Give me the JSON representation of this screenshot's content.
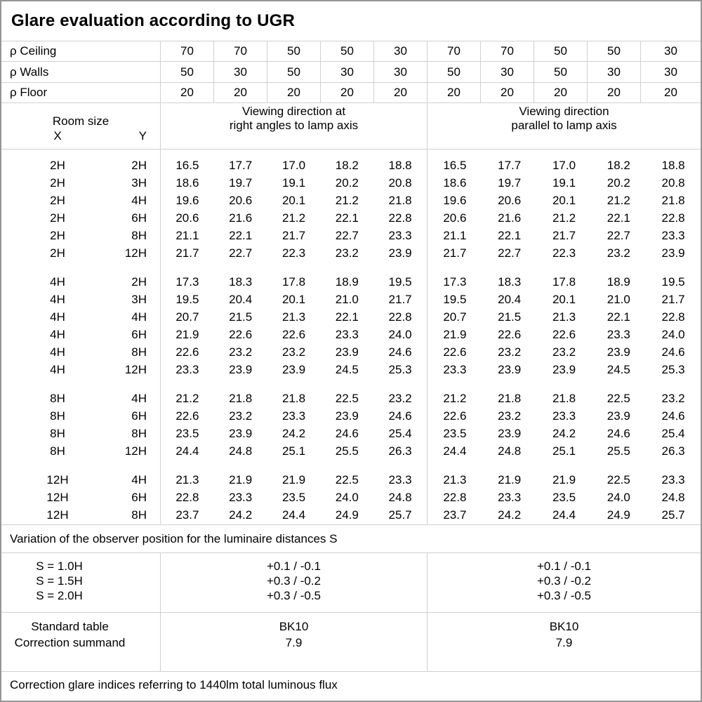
{
  "title": "Glare evaluation according to UGR",
  "reflectance": {
    "rows": [
      {
        "label": "ρ Ceiling",
        "values": [
          "70",
          "70",
          "50",
          "50",
          "30",
          "70",
          "70",
          "50",
          "50",
          "30"
        ]
      },
      {
        "label": "ρ Walls",
        "values": [
          "50",
          "30",
          "50",
          "30",
          "30",
          "50",
          "30",
          "50",
          "30",
          "30"
        ]
      },
      {
        "label": "ρ Floor",
        "values": [
          "20",
          "20",
          "20",
          "20",
          "20",
          "20",
          "20",
          "20",
          "20",
          "20"
        ]
      }
    ]
  },
  "header": {
    "room_size": "Room size",
    "x_label": "X",
    "y_label": "Y",
    "group_right_angles_line1": "Viewing direction at",
    "group_right_angles_line2": "right angles to lamp axis",
    "group_parallel_line1": "Viewing direction",
    "group_parallel_line2": "parallel to lamp axis"
  },
  "ugr_table": {
    "blocks": [
      {
        "rows": [
          {
            "x": "2H",
            "y": "2H",
            "right_angles": [
              "16.5",
              "17.7",
              "17.0",
              "18.2",
              "18.8"
            ],
            "parallel": [
              "16.5",
              "17.7",
              "17.0",
              "18.2",
              "18.8"
            ]
          },
          {
            "x": "2H",
            "y": "3H",
            "right_angles": [
              "18.6",
              "19.7",
              "19.1",
              "20.2",
              "20.8"
            ],
            "parallel": [
              "18.6",
              "19.7",
              "19.1",
              "20.2",
              "20.8"
            ]
          },
          {
            "x": "2H",
            "y": "4H",
            "right_angles": [
              "19.6",
              "20.6",
              "20.1",
              "21.2",
              "21.8"
            ],
            "parallel": [
              "19.6",
              "20.6",
              "20.1",
              "21.2",
              "21.8"
            ]
          },
          {
            "x": "2H",
            "y": "6H",
            "right_angles": [
              "20.6",
              "21.6",
              "21.2",
              "22.1",
              "22.8"
            ],
            "parallel": [
              "20.6",
              "21.6",
              "21.2",
              "22.1",
              "22.8"
            ]
          },
          {
            "x": "2H",
            "y": "8H",
            "right_angles": [
              "21.1",
              "22.1",
              "21.7",
              "22.7",
              "23.3"
            ],
            "parallel": [
              "21.1",
              "22.1",
              "21.7",
              "22.7",
              "23.3"
            ]
          },
          {
            "x": "2H",
            "y": "12H",
            "right_angles": [
              "21.7",
              "22.7",
              "22.3",
              "23.2",
              "23.9"
            ],
            "parallel": [
              "21.7",
              "22.7",
              "22.3",
              "23.2",
              "23.9"
            ]
          }
        ]
      },
      {
        "rows": [
          {
            "x": "4H",
            "y": "2H",
            "right_angles": [
              "17.3",
              "18.3",
              "17.8",
              "18.9",
              "19.5"
            ],
            "parallel": [
              "17.3",
              "18.3",
              "17.8",
              "18.9",
              "19.5"
            ]
          },
          {
            "x": "4H",
            "y": "3H",
            "right_angles": [
              "19.5",
              "20.4",
              "20.1",
              "21.0",
              "21.7"
            ],
            "parallel": [
              "19.5",
              "20.4",
              "20.1",
              "21.0",
              "21.7"
            ]
          },
          {
            "x": "4H",
            "y": "4H",
            "right_angles": [
              "20.7",
              "21.5",
              "21.3",
              "22.1",
              "22.8"
            ],
            "parallel": [
              "20.7",
              "21.5",
              "21.3",
              "22.1",
              "22.8"
            ]
          },
          {
            "x": "4H",
            "y": "6H",
            "right_angles": [
              "21.9",
              "22.6",
              "22.6",
              "23.3",
              "24.0"
            ],
            "parallel": [
              "21.9",
              "22.6",
              "22.6",
              "23.3",
              "24.0"
            ]
          },
          {
            "x": "4H",
            "y": "8H",
            "right_angles": [
              "22.6",
              "23.2",
              "23.2",
              "23.9",
              "24.6"
            ],
            "parallel": [
              "22.6",
              "23.2",
              "23.2",
              "23.9",
              "24.6"
            ]
          },
          {
            "x": "4H",
            "y": "12H",
            "right_angles": [
              "23.3",
              "23.9",
              "23.9",
              "24.5",
              "25.3"
            ],
            "parallel": [
              "23.3",
              "23.9",
              "23.9",
              "24.5",
              "25.3"
            ]
          }
        ]
      },
      {
        "rows": [
          {
            "x": "8H",
            "y": "4H",
            "right_angles": [
              "21.2",
              "21.8",
              "21.8",
              "22.5",
              "23.2"
            ],
            "parallel": [
              "21.2",
              "21.8",
              "21.8",
              "22.5",
              "23.2"
            ]
          },
          {
            "x": "8H",
            "y": "6H",
            "right_angles": [
              "22.6",
              "23.2",
              "23.3",
              "23.9",
              "24.6"
            ],
            "parallel": [
              "22.6",
              "23.2",
              "23.3",
              "23.9",
              "24.6"
            ]
          },
          {
            "x": "8H",
            "y": "8H",
            "right_angles": [
              "23.5",
              "23.9",
              "24.2",
              "24.6",
              "25.4"
            ],
            "parallel": [
              "23.5",
              "23.9",
              "24.2",
              "24.6",
              "25.4"
            ]
          },
          {
            "x": "8H",
            "y": "12H",
            "right_angles": [
              "24.4",
              "24.8",
              "25.1",
              "25.5",
              "26.3"
            ],
            "parallel": [
              "24.4",
              "24.8",
              "25.1",
              "25.5",
              "26.3"
            ]
          }
        ]
      },
      {
        "rows": [
          {
            "x": "12H",
            "y": "4H",
            "right_angles": [
              "21.3",
              "21.9",
              "21.9",
              "22.5",
              "23.3"
            ],
            "parallel": [
              "21.3",
              "21.9",
              "21.9",
              "22.5",
              "23.3"
            ]
          },
          {
            "x": "12H",
            "y": "6H",
            "right_angles": [
              "22.8",
              "23.3",
              "23.5",
              "24.0",
              "24.8"
            ],
            "parallel": [
              "22.8",
              "23.3",
              "23.5",
              "24.0",
              "24.8"
            ]
          },
          {
            "x": "12H",
            "y": "8H",
            "right_angles": [
              "23.7",
              "24.2",
              "24.4",
              "24.9",
              "25.7"
            ],
            "parallel": [
              "23.7",
              "24.2",
              "24.4",
              "24.9",
              "25.7"
            ]
          }
        ]
      }
    ]
  },
  "variation_note": "Variation of the observer position for the luminaire distances S",
  "spacing_correction": {
    "rows": [
      {
        "label": "S = 1.0H",
        "right_angles": "+0.1 / -0.1",
        "parallel": "+0.1 / -0.1"
      },
      {
        "label": "S = 1.5H",
        "right_angles": "+0.3 / -0.2",
        "parallel": "+0.3 / -0.2"
      },
      {
        "label": "S = 2.0H",
        "right_angles": "+0.3 / -0.5",
        "parallel": "+0.3 / -0.5"
      }
    ]
  },
  "standard": {
    "label_standard_table": "Standard table",
    "label_correction_summand": "Correction summand",
    "right_angles_standard_table": "BK10",
    "right_angles_correction_summand": "7.9",
    "parallel_standard_table": "BK10",
    "parallel_correction_summand": "7.9"
  },
  "footer": "Correction glare indices referring to 1440lm total luminous flux",
  "colors": {
    "grid_line": "#d0d0d0",
    "outer_border": "#969696",
    "text": "#000000",
    "background": "#ffffff"
  }
}
